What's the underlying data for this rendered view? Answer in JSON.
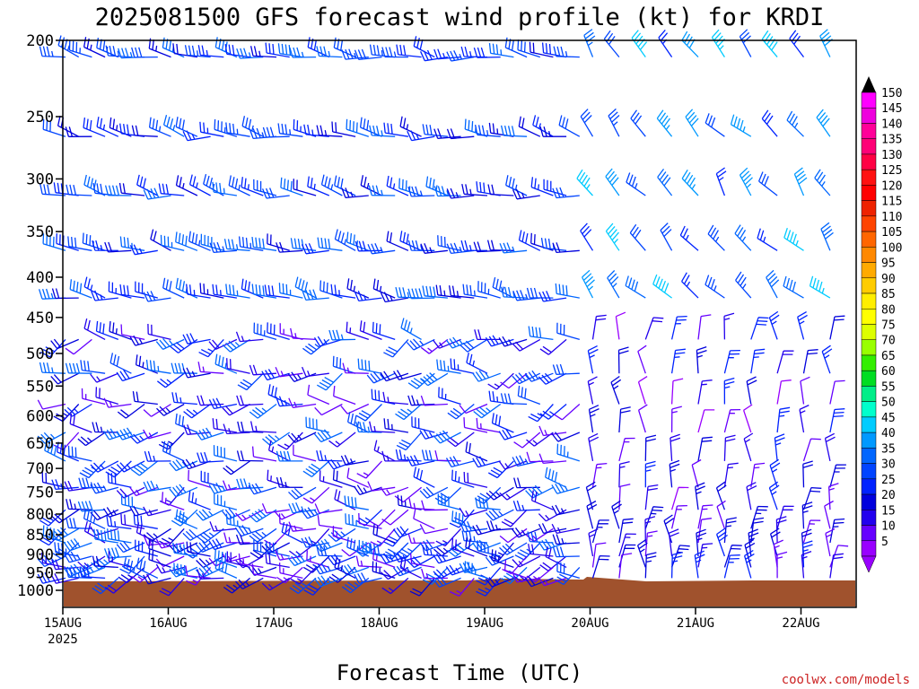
{
  "chart_data": {
    "type": "wind-barb-profile",
    "title": "2025081500 GFS forecast wind profile (kt) for KRDI",
    "xlabel": "Forecast Time (UTC)",
    "ylabel": "",
    "credit": "coolwx.com/models",
    "x_ticks": [
      {
        "label": "15AUG",
        "sublabel": "2025",
        "day": 0
      },
      {
        "label": "16AUG",
        "day": 1
      },
      {
        "label": "17AUG",
        "day": 2
      },
      {
        "label": "18AUG",
        "day": 3
      },
      {
        "label": "19AUG",
        "day": 4
      },
      {
        "label": "20AUG",
        "day": 5
      },
      {
        "label": "21AUG",
        "day": 6
      },
      {
        "label": "22AUG",
        "day": 7
      }
    ],
    "xlim_days": [
      0,
      7.5
    ],
    "y_levels_hPa": [
      200,
      250,
      300,
      350,
      400,
      450,
      500,
      550,
      600,
      650,
      700,
      750,
      800,
      850,
      900,
      950,
      1000
    ],
    "ylim_hPa": [
      200,
      1020
    ],
    "barb_levels_hPa": [
      210,
      265,
      315,
      370,
      425,
      480,
      530,
      580,
      630,
      685,
      740,
      790,
      835,
      870,
      905,
      935,
      965
    ],
    "colorbar": {
      "label_values": [
        150,
        145,
        140,
        135,
        130,
        125,
        120,
        115,
        110,
        105,
        100,
        95,
        90,
        85,
        80,
        75,
        70,
        65,
        60,
        55,
        50,
        45,
        40,
        35,
        30,
        25,
        20,
        15,
        10,
        5
      ],
      "colors": [
        "#ff00ff",
        "#ee00dd",
        "#ff0099",
        "#ff0077",
        "#ff0044",
        "#ff1111",
        "#ff0000",
        "#ee2200",
        "#ff4400",
        "#ff6600",
        "#ff8800",
        "#ffaa00",
        "#ffcc00",
        "#ffee00",
        "#ffff00",
        "#ddff00",
        "#99ff00",
        "#33ee00",
        "#00dd22",
        "#00ee88",
        "#00ffcc",
        "#00ccff",
        "#0099ff",
        "#0066ff",
        "#0044ff",
        "#0022ff",
        "#0000dd",
        "#2200ee",
        "#6600ff",
        "#9900ff"
      ]
    }
  }
}
